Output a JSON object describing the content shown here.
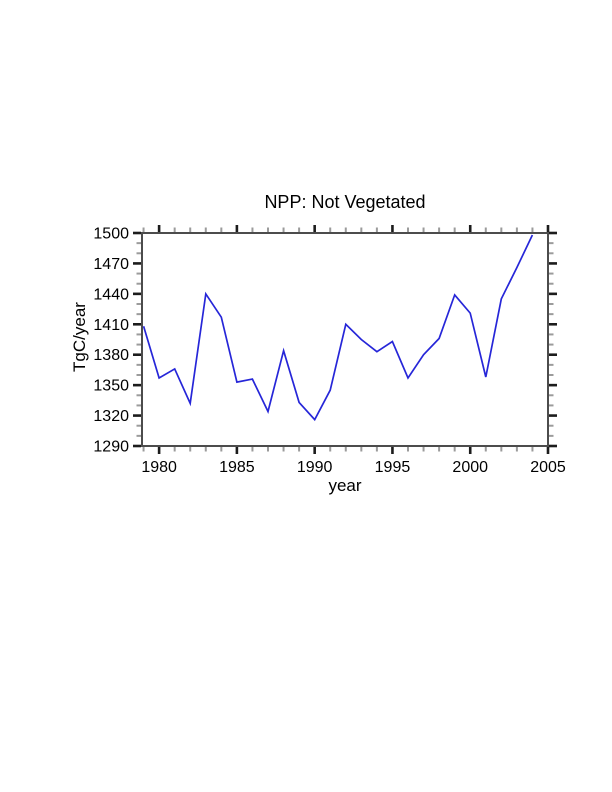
{
  "page": {
    "background": "#ffffff"
  },
  "chart_data": {
    "type": "line",
    "title": "NPP: Not Vegetated",
    "xlabel": "year",
    "ylabel": "TgC/year",
    "x": [
      1979,
      1980,
      1981,
      1982,
      1983,
      1984,
      1985,
      1986,
      1987,
      1988,
      1989,
      1990,
      1991,
      1992,
      1993,
      1994,
      1995,
      1996,
      1997,
      1998,
      1999,
      2000,
      2001,
      2002,
      2003,
      2004
    ],
    "series": [
      {
        "name": "NPP Not Vegetated",
        "values": [
          1408,
          1357,
          1366,
          1332,
          1440,
          1417,
          1353,
          1356,
          1324,
          1384,
          1333,
          1316,
          1345,
          1410,
          1395,
          1383,
          1393,
          1357,
          1380,
          1396,
          1439,
          1421,
          1358,
          1435,
          1466,
          1498
        ]
      }
    ],
    "xlim": [
      1978.9,
      2005
    ],
    "ylim": [
      1290,
      1500
    ],
    "x_major_ticks": [
      1980,
      1985,
      1990,
      1995,
      2000,
      2005
    ],
    "x_minor_step": 1,
    "y_major_ticks": [
      1290,
      1320,
      1350,
      1380,
      1410,
      1440,
      1470,
      1500
    ],
    "y_minor_step": 10,
    "grid": false,
    "legend": "none"
  },
  "colors": {
    "line": "#2626d8",
    "frame": "#4c4c4c",
    "major_tick": "#1c1c1c",
    "minor_tick": "#9b9b9b",
    "text": "#000000"
  }
}
